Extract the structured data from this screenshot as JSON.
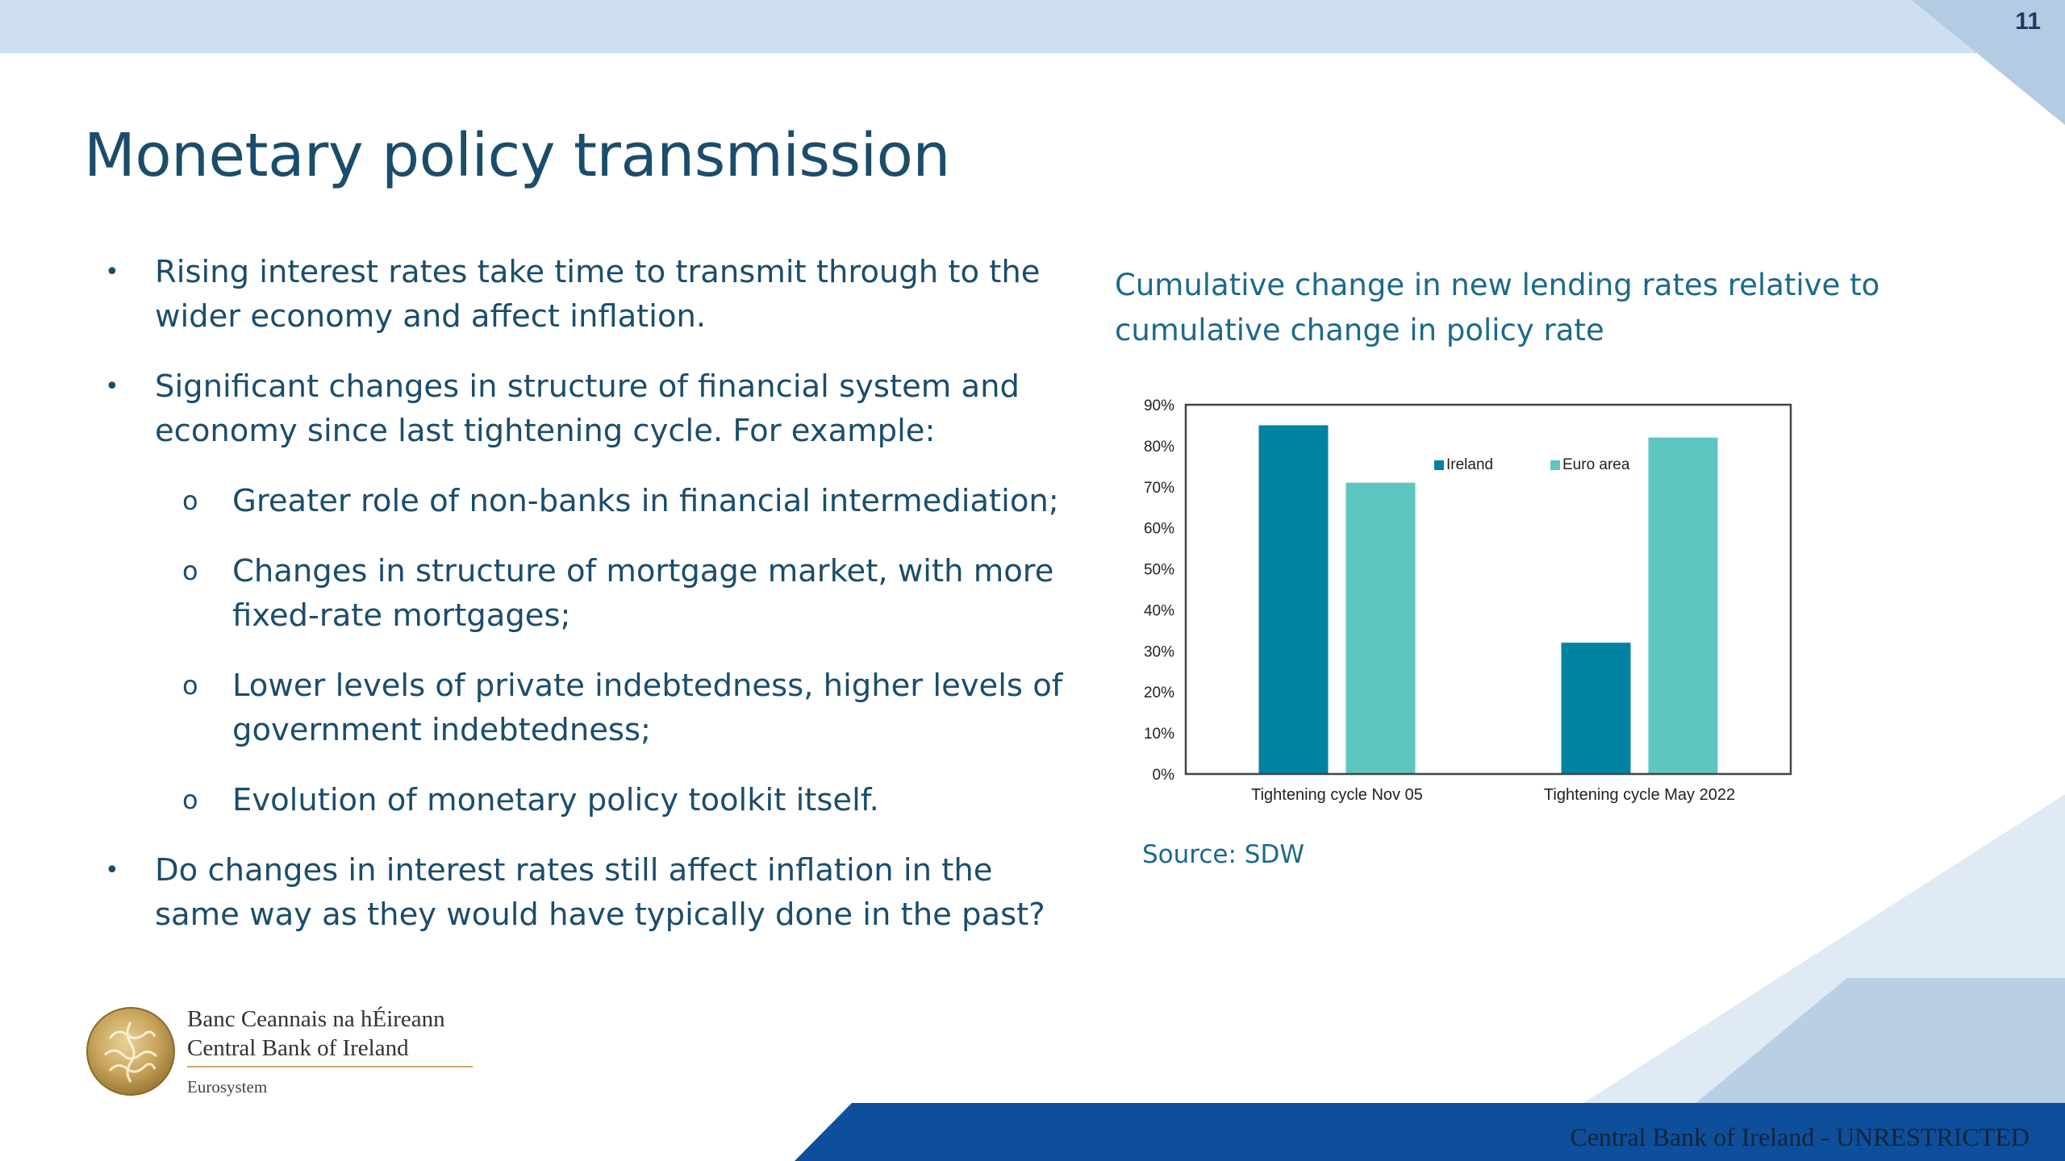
{
  "slide": {
    "number": "11",
    "title": "Monetary policy transmission"
  },
  "bullets": [
    "Rising interest rates take time to transmit through to the wider economy and affect inflation.",
    "Significant changes in structure of financial system and economy since last tightening cycle. For example:",
    "Do changes in interest rates still affect inflation in the same way as they would have typically done in the past?"
  ],
  "sub_bullets": [
    "Greater role of non-banks in financial intermediation;",
    "Changes in structure of mortgage market, with more fixed-rate mortgages;",
    "Lower levels of private indebtedness, higher levels of government indebtedness;",
    "Evolution of monetary policy toolkit itself."
  ],
  "markers": {
    "bullet": "•",
    "sub_bullet": "o"
  },
  "chart_data": {
    "type": "bar",
    "title": "Cumulative change in new lending rates relative to cumulative change in policy rate",
    "categories": [
      "Tightening cycle Nov 05",
      "Tightening cycle May 2022"
    ],
    "series": [
      {
        "name": "Ireland",
        "values": [
          85,
          32
        ],
        "color": "#0083a0"
      },
      {
        "name": "Euro area",
        "values": [
          71,
          82
        ],
        "color": "#5ec6c0"
      }
    ],
    "ylim": [
      0,
      90
    ],
    "yticks": [
      "0%",
      "10%",
      "20%",
      "30%",
      "40%",
      "50%",
      "60%",
      "70%",
      "80%",
      "90%"
    ],
    "legend_position": "top-right",
    "grid": false,
    "source": "Source: SDW"
  },
  "logo": {
    "name_irish": "Banc Ceannais na hÉireann",
    "name_english": "Central Bank of Ireland",
    "network": "Eurosystem"
  },
  "footer": {
    "classification": "Central Bank of Ireland - UNRESTRICTED"
  },
  "colors": {
    "title": "#1b4d6b",
    "top_band": "#cddff0",
    "footer_band": "#0d4f9a",
    "ireland": "#0083a0",
    "euro_area": "#5ec6c0"
  }
}
